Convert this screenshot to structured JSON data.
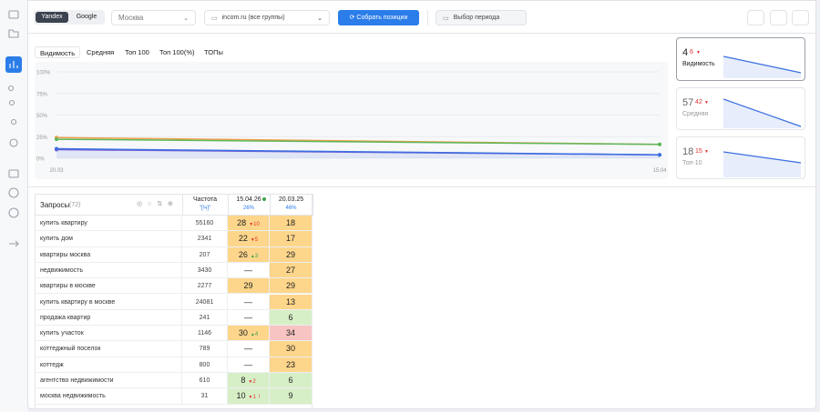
{
  "toolbar": {
    "engines": [
      "Yandex",
      "Google"
    ],
    "region": "Москва",
    "project": "incom.ru (все группы)",
    "collect_button": "Собрать позиции",
    "period": "Выбор периода"
  },
  "tabs": [
    "Видимость",
    "Средняя",
    "Топ 100",
    "Топ 100(%)",
    "ТОПы"
  ],
  "chart": {
    "type": "line",
    "x": [
      "20.03",
      "15.04"
    ],
    "series": [
      {
        "color": "#f0a04b",
        "values": [
          24,
          16
        ]
      },
      {
        "color": "#5cb85c",
        "values": [
          22,
          16
        ]
      },
      {
        "color": "#7a5cd6",
        "values": [
          10,
          4
        ]
      },
      {
        "color": "#3b6fe0",
        "values": [
          11,
          4
        ]
      }
    ],
    "ylim": [
      0,
      100
    ],
    "yticks": [
      {
        "value": 0,
        "label": "0%"
      },
      {
        "value": 25,
        "label": "25%"
      },
      {
        "value": 50,
        "label": "50%"
      },
      {
        "value": 75,
        "label": "75%"
      },
      {
        "value": 100,
        "label": "100%"
      }
    ],
    "grid": true
  },
  "cards": [
    {
      "value": 4,
      "delta": 6,
      "label": "Видимость"
    },
    {
      "value": 57,
      "delta": 42,
      "label": "Средняя"
    },
    {
      "value": 18,
      "delta": 15,
      "label": "Топ-10"
    }
  ],
  "table": {
    "title": "Запросы",
    "count": "(72)",
    "freq_header": "Частота",
    "freq_sub": "\"[!ч]\"",
    "dates": [
      {
        "date": "15.04.26",
        "share": "26%"
      },
      {
        "date": "20.03.25",
        "share": "46%"
      }
    ],
    "rows": [
      {
        "query": "купить квартиру",
        "freq": 55160,
        "pos1": 28,
        "delta1": 10,
        "trend1": "down",
        "pos2": 18,
        "color1": "orange",
        "color2": "orange"
      },
      {
        "query": "купить дом",
        "freq": 2341,
        "pos1": 22,
        "delta1": 5,
        "trend1": "down",
        "pos2": 17,
        "color1": "orange",
        "color2": "orange"
      },
      {
        "query": "квартиры москва",
        "freq": 207,
        "pos1": 26,
        "delta1": 3,
        "trend1": "up",
        "pos2": 29,
        "color1": "orange",
        "color2": "orange"
      },
      {
        "query": "недвижимость",
        "freq": 3430,
        "pos1": "—",
        "pos2": 27,
        "color1": "white",
        "color2": "orange"
      },
      {
        "query": "квартиры в москве",
        "freq": 2277,
        "pos1": 29,
        "pos2": 29,
        "color1": "orange",
        "color2": "orange"
      },
      {
        "query": "купить квартиру в москве",
        "freq": 24081,
        "pos1": "—",
        "pos2": 13,
        "color1": "white",
        "color2": "orange"
      },
      {
        "query": "продажа квартир",
        "freq": 241,
        "pos1": "—",
        "pos2": 6,
        "color1": "white",
        "color2": "green"
      },
      {
        "query": "купить участок",
        "freq": 1146,
        "pos1": 30,
        "delta1": 4,
        "trend1": "up",
        "pos2": 34,
        "color1": "orange",
        "color2": "red"
      },
      {
        "query": "коттеджный поселок",
        "freq": 789,
        "pos1": "—",
        "pos2": 30,
        "color1": "white",
        "color2": "orange"
      },
      {
        "query": "коттедж",
        "freq": 800,
        "pos1": "—",
        "pos2": 23,
        "color1": "white",
        "color2": "orange"
      },
      {
        "query": "агентство недвижимости",
        "freq": 610,
        "pos1": 8,
        "delta1": 2,
        "trend1": "down",
        "pos2": 6,
        "color1": "green",
        "color2": "green"
      },
      {
        "query": "москва недвижимость",
        "freq": 31,
        "pos1": 10,
        "delta1": 1,
        "trend1": "down",
        "flag1": "!",
        "pos2": 9,
        "color1": "green",
        "color2": "green"
      }
    ]
  }
}
